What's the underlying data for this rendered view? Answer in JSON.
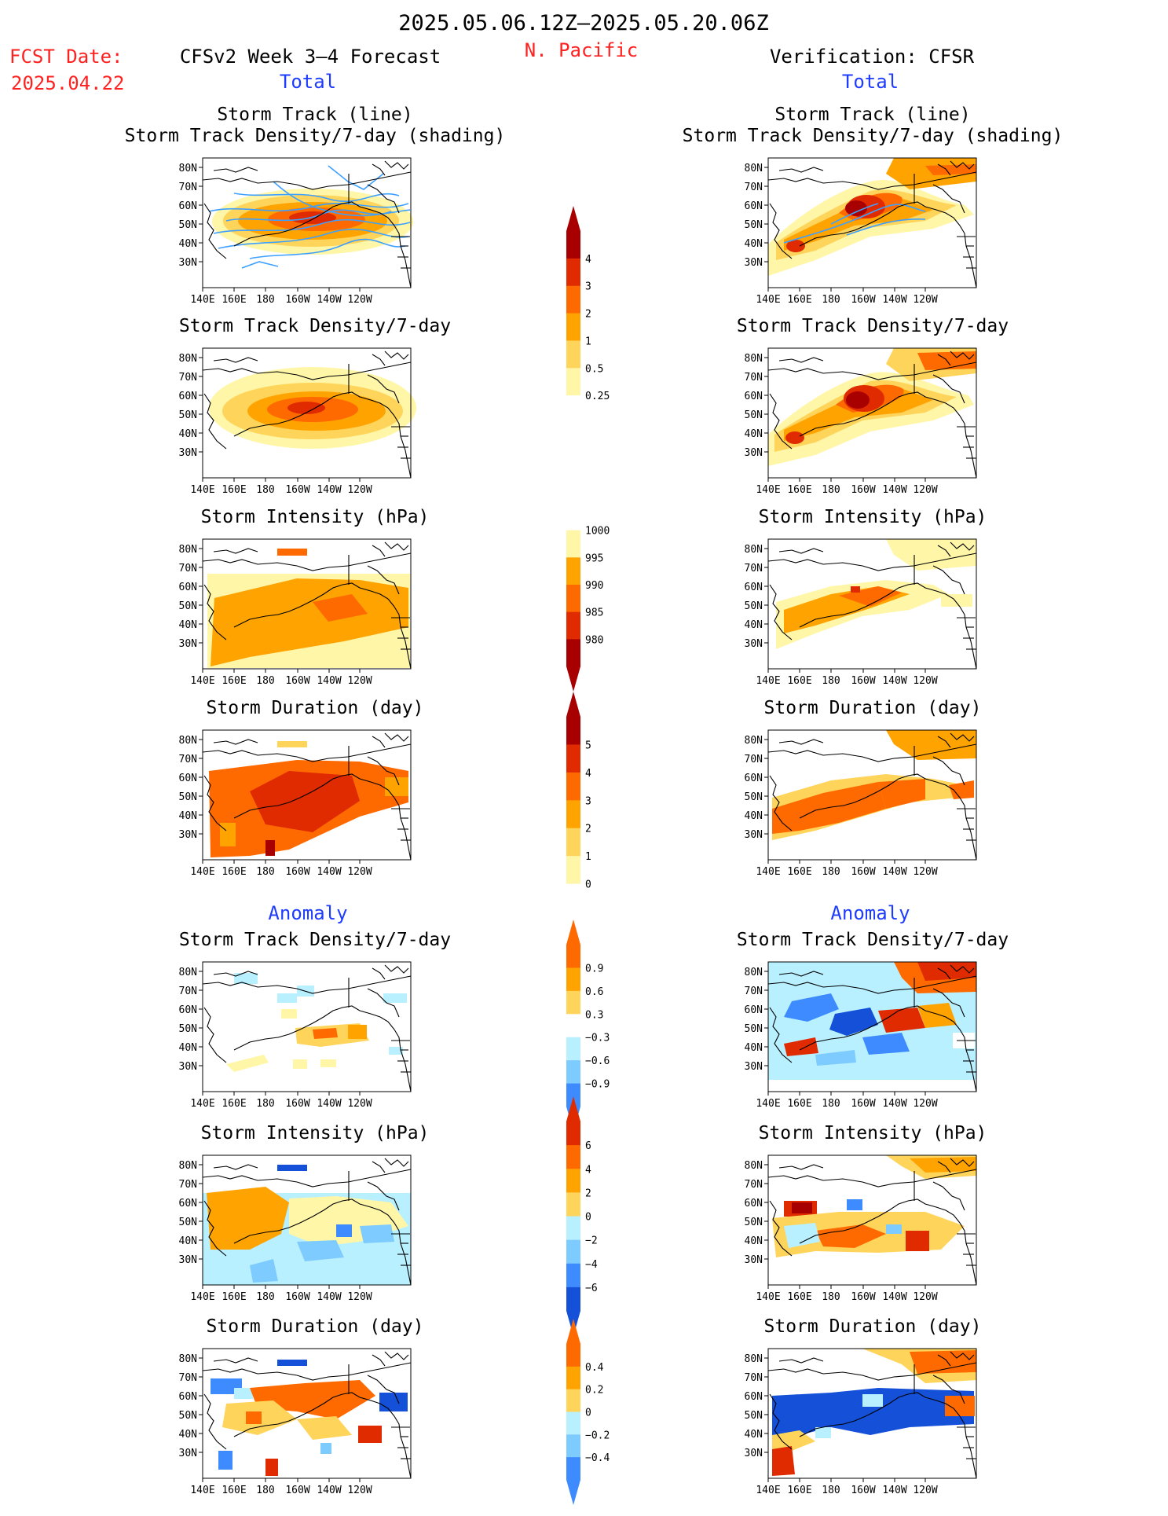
{
  "header": {
    "period": "2025.05.06.12Z–2025.05.20.06Z",
    "region": "N. Pacific",
    "fcst_date_label": "FCST Date:",
    "fcst_date_value": "2025.04.22",
    "left_title": "CFSv2 Week 3–4 Forecast",
    "right_title": "Verification: CFSR",
    "left_sub": "Total",
    "right_sub": "Total",
    "anomaly_left": "Anomaly",
    "anomaly_right": "Anomaly"
  },
  "colors": {
    "title_red": "#ff2020",
    "title_blue": "#1e3cff",
    "warm": [
      "#fff6a8",
      "#ffd45a",
      "#ffa300",
      "#ff6a00",
      "#e02a00",
      "#a80000"
    ],
    "cool": [
      "#b8f0ff",
      "#7ecbff",
      "#3d8bff",
      "#1450d8"
    ],
    "track_line": "#3da0ff"
  },
  "panels": {
    "left": [
      {
        "title1": "Storm Track (line)",
        "title2": "Storm Track Density/7-day (shading)"
      },
      {
        "title1": "Storm Track Density/7-day"
      },
      {
        "title1": "Storm Intensity (hPa)"
      },
      {
        "title1": "Storm Duration (day)"
      },
      {
        "title1": "Storm Track Density/7-day"
      },
      {
        "title1": "Storm Intensity (hPa)"
      },
      {
        "title1": "Storm Duration (day)"
      }
    ],
    "right": [
      {
        "title1": "Storm Track (line)",
        "title2": "Storm Track Density/7-day (shading)"
      },
      {
        "title1": "Storm Track Density/7-day"
      },
      {
        "title1": "Storm Intensity (hPa)"
      },
      {
        "title1": "Storm Duration (day)"
      },
      {
        "title1": "Storm Track Density/7-day"
      },
      {
        "title1": "Storm Intensity (hPa)"
      },
      {
        "title1": "Storm Duration (day)"
      }
    ]
  },
  "axes": {
    "lat_labels": [
      "80N",
      "70N",
      "60N",
      "50N",
      "40N",
      "30N"
    ],
    "lon_labels": [
      "140E",
      "160E",
      "180",
      "160W",
      "140W",
      "120W"
    ]
  },
  "colorbars": [
    {
      "labels": [
        "4",
        "3",
        "2",
        "1",
        "0.5",
        "0.25"
      ]
    },
    {
      "labels": [
        "1000",
        "995",
        "990",
        "985",
        "980"
      ]
    },
    {
      "labels": [
        "5",
        "4",
        "3",
        "2",
        "1",
        "0"
      ]
    },
    {
      "labels": [
        "0.9",
        "0.6",
        "0.3",
        "−0.3",
        "−0.6",
        "−0.9"
      ]
    },
    {
      "labels": [
        "6",
        "4",
        "2",
        "0",
        "−2",
        "−4",
        "−6"
      ]
    },
    {
      "labels": [
        "0.4",
        "0.2",
        "0",
        "−0.2",
        "−0.4"
      ]
    }
  ]
}
